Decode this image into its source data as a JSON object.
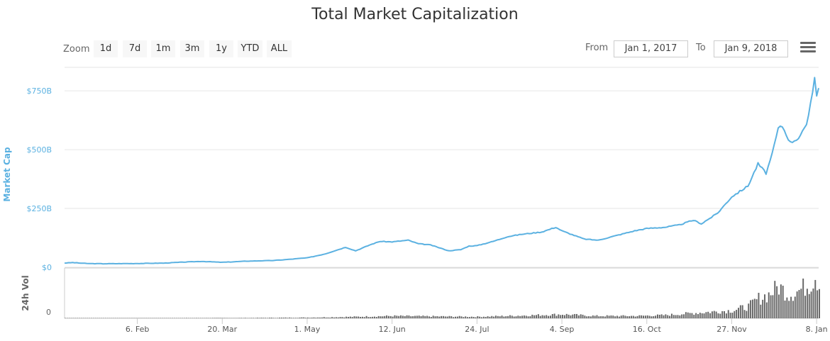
{
  "title": "Total Market Capitalization",
  "toolbar": {
    "zoom_label": "Zoom",
    "zoom_buttons": [
      "1d",
      "7d",
      "1m",
      "3m",
      "1y",
      "YTD",
      "ALL"
    ],
    "from_label": "From",
    "from_value": "Jan 1, 2017",
    "to_label": "To",
    "to_value": "Jan 9, 2018",
    "menu_icon": "hamburger-menu-icon"
  },
  "colors": {
    "line": "#5bb1e1",
    "volume": "#666666",
    "axis_text": "#5bb1e1",
    "grid": "#e6e6e6"
  },
  "chart_data": [
    {
      "type": "line",
      "title": "Total Market Capitalization",
      "ylabel": "Market Cap",
      "xlabel": "",
      "ylim": [
        0,
        850
      ],
      "y_unit": "billion USD",
      "y_ticks": [
        "$0",
        "$250B",
        "$500B",
        "$750B"
      ],
      "y_tick_values": [
        0,
        250,
        500,
        750
      ],
      "x_range": [
        "2017-01-01",
        "2018-01-09"
      ],
      "x_ticks": [
        "6. Feb",
        "20. Mar",
        "1. May",
        "12. Jun",
        "24. Jul",
        "4. Sep",
        "16. Oct",
        "27. Nov",
        "8. Jan"
      ],
      "x_tick_dates": [
        "2017-02-06",
        "2017-03-20",
        "2017-05-01",
        "2017-06-12",
        "2017-07-24",
        "2017-09-04",
        "2017-10-16",
        "2017-11-27",
        "2018-01-08"
      ],
      "grid": true,
      "series": [
        {
          "name": "Market Cap",
          "x": [
            "2017-01-01",
            "2017-01-05",
            "2017-01-12",
            "2017-01-20",
            "2017-02-06",
            "2017-02-20",
            "2017-03-01",
            "2017-03-10",
            "2017-03-20",
            "2017-04-01",
            "2017-04-15",
            "2017-05-01",
            "2017-05-10",
            "2017-05-20",
            "2017-05-25",
            "2017-06-01",
            "2017-06-06",
            "2017-06-12",
            "2017-06-20",
            "2017-06-25",
            "2017-07-01",
            "2017-07-10",
            "2017-07-16",
            "2017-07-20",
            "2017-07-24",
            "2017-08-01",
            "2017-08-08",
            "2017-08-15",
            "2017-08-25",
            "2017-09-01",
            "2017-09-04",
            "2017-09-15",
            "2017-09-22",
            "2017-10-01",
            "2017-10-10",
            "2017-10-16",
            "2017-10-25",
            "2017-11-01",
            "2017-11-08",
            "2017-11-12",
            "2017-11-20",
            "2017-11-27",
            "2017-12-05",
            "2017-12-10",
            "2017-12-14",
            "2017-12-17",
            "2017-12-20",
            "2017-12-22",
            "2017-12-26",
            "2017-12-30",
            "2018-01-03",
            "2018-01-06",
            "2018-01-07",
            "2018-01-08",
            "2018-01-09"
          ],
          "values": [
            18,
            20,
            16,
            15,
            16,
            18,
            22,
            25,
            21,
            26,
            29,
            40,
            57,
            85,
            70,
            95,
            110,
            108,
            115,
            100,
            95,
            70,
            75,
            90,
            92,
            110,
            130,
            140,
            150,
            170,
            155,
            120,
            115,
            135,
            155,
            165,
            170,
            180,
            200,
            185,
            230,
            300,
            345,
            440,
            400,
            480,
            590,
            600,
            530,
            550,
            600,
            750,
            815,
            730,
            760
          ]
        }
      ]
    },
    {
      "type": "bar",
      "title": "",
      "ylabel": "24h Vol",
      "xlabel": "",
      "y_ticks": [
        "0"
      ],
      "ylim": [
        0,
        60
      ],
      "y_unit": "billion USD",
      "x_range": [
        "2017-01-01",
        "2018-01-09"
      ],
      "series": [
        {
          "name": "24h Vol",
          "x": [
            "2017-01-01",
            "2017-02-01",
            "2017-03-01",
            "2017-04-01",
            "2017-05-01",
            "2017-05-25",
            "2017-06-12",
            "2017-07-01",
            "2017-07-24",
            "2017-08-15",
            "2017-09-04",
            "2017-09-20",
            "2017-10-10",
            "2017-10-25",
            "2017-11-10",
            "2017-11-27",
            "2017-12-05",
            "2017-12-10",
            "2017-12-15",
            "2017-12-20",
            "2017-12-25",
            "2017-12-30",
            "2018-01-05",
            "2018-01-07",
            "2018-01-09"
          ],
          "values": [
            0.3,
            0.3,
            0.4,
            0.5,
            1,
            2,
            3,
            2.5,
            2,
            3.5,
            5,
            3,
            3,
            4,
            7,
            10,
            15,
            25,
            30,
            40,
            30,
            35,
            45,
            55,
            42
          ]
        }
      ]
    }
  ]
}
